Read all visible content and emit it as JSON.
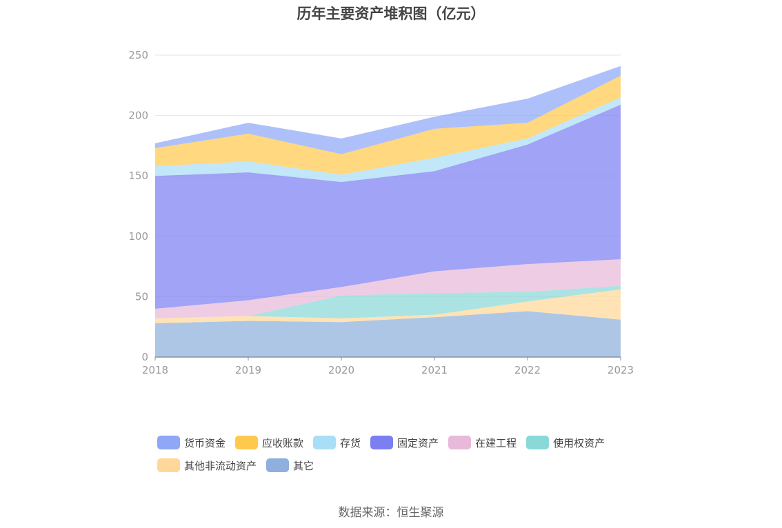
{
  "chart_data": {
    "type": "area",
    "stacked": true,
    "title": "历年主要资产堆积图（亿元）",
    "x": [
      "2018",
      "2019",
      "2020",
      "2021",
      "2022",
      "2023"
    ],
    "ylim": [
      0,
      250
    ],
    "yticks": [
      "0",
      "50",
      "100",
      "150",
      "200",
      "250"
    ],
    "grid": true,
    "legend_position": "bottom",
    "series": [
      {
        "name": "其它",
        "color": "#8fb0dc",
        "values": [
          28,
          30,
          29,
          33,
          38,
          31
        ]
      },
      {
        "name": "其他非流动资产",
        "color": "#ffd899",
        "values": [
          4,
          4,
          3,
          2,
          8,
          25
        ]
      },
      {
        "name": "使用权资产",
        "color": "#8ad8d8",
        "values": [
          0,
          0,
          19,
          18,
          8,
          3
        ]
      },
      {
        "name": "在建工程",
        "color": "#e8b9d9",
        "values": [
          8,
          13,
          7,
          18,
          23,
          22
        ]
      },
      {
        "name": "固定资产",
        "color": "#7b7ff2",
        "values": [
          110,
          106,
          87,
          83,
          99,
          128
        ]
      },
      {
        "name": "存货",
        "color": "#a9def7",
        "values": [
          8,
          9,
          6,
          11,
          5,
          6
        ]
      },
      {
        "name": "应收账款",
        "color": "#ffc94d",
        "values": [
          15,
          23,
          17,
          24,
          13,
          18
        ]
      },
      {
        "name": "货币资金",
        "color": "#8ea7f6",
        "values": [
          4,
          9,
          13,
          10,
          20,
          8
        ]
      }
    ]
  },
  "legend_items": [
    {
      "name": "货币资金",
      "color": "#8ea7f6"
    },
    {
      "name": "应收账款",
      "color": "#ffc94d"
    },
    {
      "name": "存货",
      "color": "#a9def7"
    },
    {
      "name": "固定资产",
      "color": "#7b7ff2"
    },
    {
      "name": "在建工程",
      "color": "#e8b9d9"
    },
    {
      "name": "使用权资产",
      "color": "#8ad8d8"
    },
    {
      "name": "其他非流动资产",
      "color": "#ffd899"
    },
    {
      "name": "其它",
      "color": "#8fb0dc"
    }
  ],
  "source_text": "数据来源：恒生聚源"
}
